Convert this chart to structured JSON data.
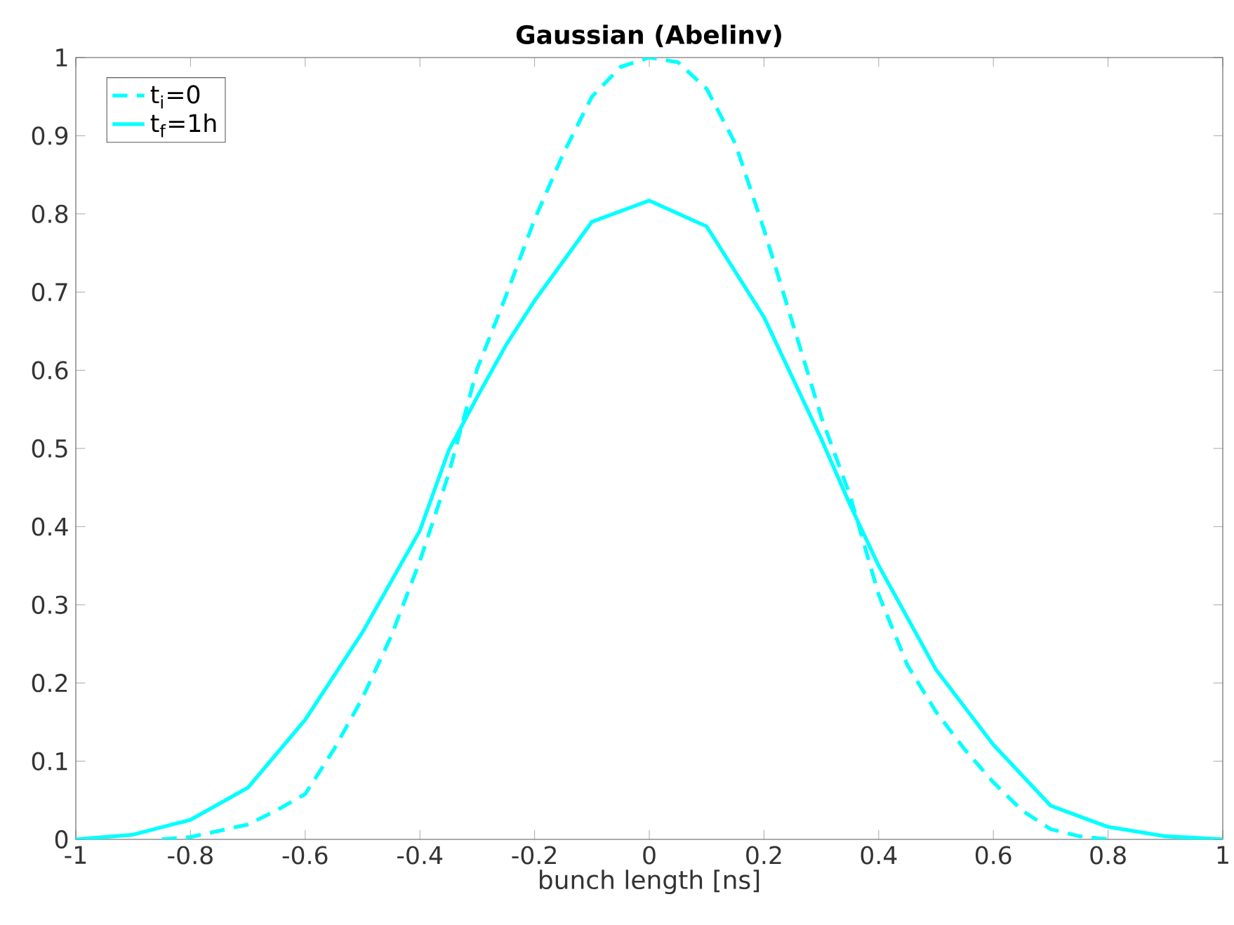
{
  "chart_data": {
    "type": "line",
    "title": "Gaussian (Abelinv)",
    "xlabel": "bunch length [ns]",
    "xlim": [
      -1,
      1
    ],
    "xticks": [
      -1,
      -0.8,
      -0.6,
      -0.4,
      -0.2,
      0,
      0.2,
      0.4,
      0.6,
      0.8,
      1
    ],
    "ylim": [
      0,
      1
    ],
    "yticks": [
      0,
      0.1,
      0.2,
      0.3,
      0.4,
      0.5,
      0.6,
      0.7,
      0.8,
      0.9,
      1
    ],
    "legend": "top left",
    "grid": false,
    "series": [
      {
        "name": "t$_{i}$=0",
        "color": "#00ffff",
        "line_style": "dashed",
        "x": [
          -0.85,
          -0.8,
          -0.7,
          -0.65,
          -0.6,
          -0.55,
          -0.5,
          -0.45,
          -0.4,
          -0.35,
          -0.3,
          -0.25,
          -0.2,
          -0.15,
          -0.1,
          -0.05,
          0,
          0.05,
          0.1,
          0.15,
          0.2,
          0.25,
          0.3,
          0.35,
          0.4,
          0.45,
          0.5,
          0.55,
          0.6,
          0.65,
          0.7,
          0.75,
          0.8
        ],
        "values": [
          0,
          0.003,
          0.019,
          0.037,
          0.058,
          0.115,
          0.181,
          0.26,
          0.356,
          0.467,
          0.602,
          0.695,
          0.793,
          0.877,
          0.95,
          0.988,
          1.0,
          0.994,
          0.96,
          0.89,
          0.78,
          0.66,
          0.54,
          0.44,
          0.313,
          0.223,
          0.163,
          0.115,
          0.073,
          0.037,
          0.013,
          0.004,
          0
        ]
      },
      {
        "name": "t$_{f}$=1h",
        "color": "#00ffff",
        "line_style": "solid",
        "x": [
          -1,
          -0.9,
          -0.8,
          -0.7,
          -0.6,
          -0.5,
          -0.4,
          -0.35,
          -0.3,
          -0.25,
          -0.2,
          -0.1,
          0,
          0.1,
          0.2,
          0.3,
          0.35,
          0.4,
          0.5,
          0.6,
          0.7,
          0.8,
          0.9,
          1
        ],
        "values": [
          0,
          0.006,
          0.025,
          0.066,
          0.153,
          0.265,
          0.395,
          0.497,
          0.566,
          0.632,
          0.689,
          0.79,
          0.817,
          0.784,
          0.668,
          0.512,
          0.428,
          0.35,
          0.217,
          0.121,
          0.043,
          0.016,
          0.004,
          0
        ]
      }
    ]
  }
}
